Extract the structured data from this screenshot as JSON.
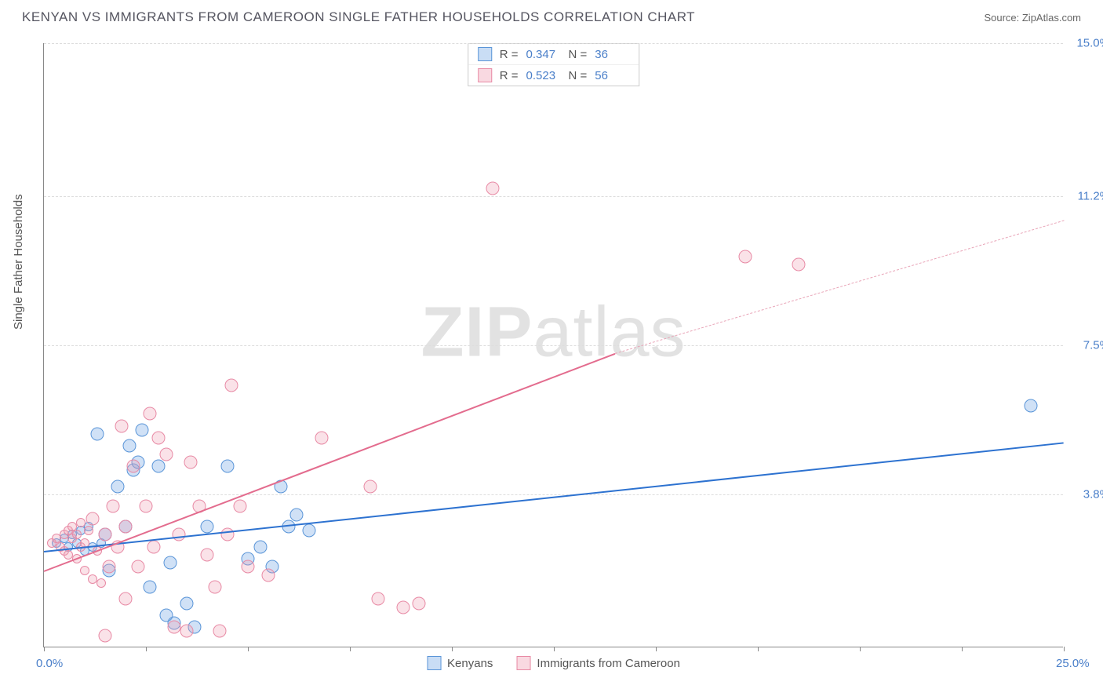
{
  "header": {
    "title": "KENYAN VS IMMIGRANTS FROM CAMEROON SINGLE FATHER HOUSEHOLDS CORRELATION CHART",
    "source": "Source: ZipAtlas.com"
  },
  "chart": {
    "type": "scatter",
    "ylabel": "Single Father Households",
    "background_color": "#ffffff",
    "grid_color": "#dddddd",
    "axis_color": "#888888",
    "xlim": [
      0,
      25
    ],
    "ylim": [
      0,
      15
    ],
    "xticks": [
      0,
      2.5,
      5,
      7.5,
      10,
      12.5,
      15,
      17.5,
      20,
      22.5,
      25
    ],
    "yticks": [
      3.8,
      7.5,
      11.2,
      15.0
    ],
    "xaxis_labels": [
      {
        "value": "0.0%",
        "pos": 0
      },
      {
        "value": "25.0%",
        "pos": 25
      }
    ],
    "yaxis_labels": [
      {
        "value": "3.8%",
        "pos": 3.8
      },
      {
        "value": "7.5%",
        "pos": 7.5
      },
      {
        "value": "11.2%",
        "pos": 11.2
      },
      {
        "value": "15.0%",
        "pos": 15.0
      }
    ],
    "watermark": {
      "part1": "ZIP",
      "part2": "atlas"
    },
    "marker_size": 17,
    "marker_size_small": 12,
    "series": [
      {
        "name": "Kenyans",
        "color_fill": "rgba(120,170,230,0.35)",
        "color_stroke": "#5a95d8",
        "class": "blue",
        "R": "0.347",
        "N": "36",
        "trend": {
          "x1": 0,
          "y1": 2.4,
          "x2": 25,
          "y2": 5.1,
          "color": "#2d72d0"
        },
        "points": [
          [
            0.3,
            2.6
          ],
          [
            0.5,
            2.7
          ],
          [
            0.6,
            2.5
          ],
          [
            0.7,
            2.8
          ],
          [
            0.8,
            2.6
          ],
          [
            0.9,
            2.9
          ],
          [
            1.0,
            2.4
          ],
          [
            1.1,
            3.0
          ],
          [
            1.2,
            2.5
          ],
          [
            1.3,
            5.3
          ],
          [
            1.4,
            2.6
          ],
          [
            1.5,
            2.8
          ],
          [
            1.6,
            1.9
          ],
          [
            1.8,
            4.0
          ],
          [
            2.0,
            3.0
          ],
          [
            2.1,
            5.0
          ],
          [
            2.2,
            4.4
          ],
          [
            2.3,
            4.6
          ],
          [
            2.4,
            5.4
          ],
          [
            2.6,
            1.5
          ],
          [
            2.8,
            4.5
          ],
          [
            3.0,
            0.8
          ],
          [
            3.1,
            2.1
          ],
          [
            3.2,
            0.6
          ],
          [
            3.5,
            1.1
          ],
          [
            3.7,
            0.5
          ],
          [
            4.0,
            3.0
          ],
          [
            4.5,
            4.5
          ],
          [
            5.0,
            2.2
          ],
          [
            5.3,
            2.5
          ],
          [
            5.6,
            2.0
          ],
          [
            5.8,
            4.0
          ],
          [
            6.0,
            3.0
          ],
          [
            6.2,
            3.3
          ],
          [
            6.5,
            2.9
          ],
          [
            24.2,
            6.0
          ]
        ]
      },
      {
        "name": "Immigrants from Cameroon",
        "color_fill": "rgba(240,160,180,0.30)",
        "color_stroke": "#e88aa5",
        "class": "pink",
        "R": "0.523",
        "N": "56",
        "trend": {
          "x1": 0,
          "y1": 1.9,
          "x2": 14,
          "y2": 7.3,
          "color": "#e36c8e"
        },
        "trend_dash": {
          "x1": 14,
          "y1": 7.3,
          "x2": 25,
          "y2": 10.6
        },
        "points": [
          [
            0.2,
            2.6
          ],
          [
            0.3,
            2.7
          ],
          [
            0.4,
            2.5
          ],
          [
            0.5,
            2.8
          ],
          [
            0.5,
            2.4
          ],
          [
            0.6,
            2.9
          ],
          [
            0.6,
            2.3
          ],
          [
            0.7,
            2.7
          ],
          [
            0.7,
            3.0
          ],
          [
            0.8,
            2.2
          ],
          [
            0.8,
            2.8
          ],
          [
            0.9,
            2.5
          ],
          [
            0.9,
            3.1
          ],
          [
            1.0,
            2.6
          ],
          [
            1.0,
            1.9
          ],
          [
            1.1,
            2.9
          ],
          [
            1.2,
            1.7
          ],
          [
            1.2,
            3.2
          ],
          [
            1.3,
            2.4
          ],
          [
            1.4,
            1.6
          ],
          [
            1.5,
            2.8
          ],
          [
            1.5,
            0.3
          ],
          [
            1.6,
            2.0
          ],
          [
            1.7,
            3.5
          ],
          [
            1.8,
            2.5
          ],
          [
            1.9,
            5.5
          ],
          [
            2.0,
            3.0
          ],
          [
            2.0,
            1.2
          ],
          [
            2.2,
            4.5
          ],
          [
            2.3,
            2.0
          ],
          [
            2.5,
            3.5
          ],
          [
            2.6,
            5.8
          ],
          [
            2.7,
            2.5
          ],
          [
            2.8,
            5.2
          ],
          [
            3.0,
            4.8
          ],
          [
            3.2,
            0.5
          ],
          [
            3.3,
            2.8
          ],
          [
            3.5,
            0.4
          ],
          [
            3.6,
            4.6
          ],
          [
            3.8,
            3.5
          ],
          [
            4.0,
            2.3
          ],
          [
            4.2,
            1.5
          ],
          [
            4.3,
            0.4
          ],
          [
            4.5,
            2.8
          ],
          [
            4.6,
            6.5
          ],
          [
            4.8,
            3.5
          ],
          [
            5.0,
            2.0
          ],
          [
            5.5,
            1.8
          ],
          [
            6.8,
            5.2
          ],
          [
            8.0,
            4.0
          ],
          [
            8.2,
            1.2
          ],
          [
            8.8,
            1.0
          ],
          [
            9.2,
            1.1
          ],
          [
            11.0,
            11.4
          ],
          [
            17.2,
            9.7
          ],
          [
            18.5,
            9.5
          ]
        ]
      }
    ],
    "stats_labels": {
      "R": "R =",
      "N": "N ="
    },
    "legend_bottom": [
      {
        "swatch": "blue",
        "label": "Kenyans"
      },
      {
        "swatch": "pink",
        "label": "Immigrants from Cameroon"
      }
    ]
  }
}
